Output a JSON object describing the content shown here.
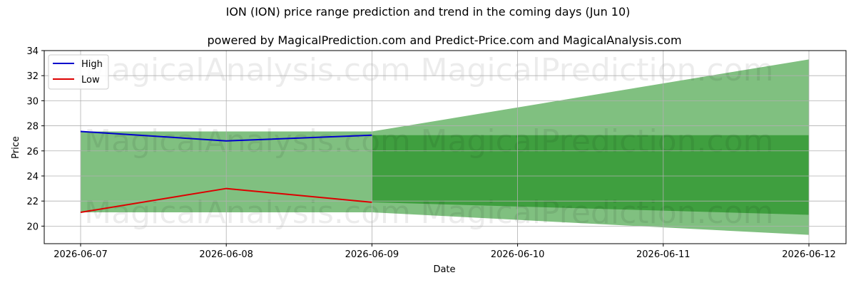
{
  "chart_data": {
    "type": "area",
    "title": "ION (ION) price range prediction and trend in the coming days (Jun 10)",
    "subtitle": "powered by MagicalPrediction.com and Predict-Price.com and MagicalAnalysis.com",
    "xlabel": "Date",
    "ylabel": "Price",
    "x": [
      "2026-06-07",
      "2026-06-08",
      "2026-06-09",
      "2026-06-10",
      "2026-06-11",
      "2026-06-12"
    ],
    "ylim": [
      18.6,
      34.0
    ],
    "yticks": [
      20,
      22,
      24,
      26,
      28,
      30,
      32,
      34
    ],
    "grid": true,
    "legend_position": "top-left",
    "series": [
      {
        "name": "High",
        "color": "#0000cc",
        "x": [
          0,
          1,
          2
        ],
        "values": [
          27.55,
          26.8,
          27.25
        ]
      },
      {
        "name": "Low",
        "color": "#dd0000",
        "x": [
          0,
          1,
          2
        ],
        "values": [
          21.1,
          23.0,
          21.9
        ]
      }
    ],
    "bands": [
      {
        "color": "#80c080",
        "x": [
          0,
          2
        ],
        "upper": [
          27.55,
          27.55
        ],
        "lower": [
          21.1,
          21.1
        ]
      },
      {
        "color": "#80c080",
        "x": [
          2,
          5
        ],
        "upper": [
          27.55,
          33.3
        ],
        "lower": [
          21.1,
          19.3
        ]
      },
      {
        "color": "#3f9f3f",
        "x": [
          2,
          5
        ],
        "upper": [
          27.25,
          27.25
        ],
        "lower": [
          21.9,
          20.9
        ]
      }
    ],
    "watermarks": [
      "MagicalAnalysis.com",
      "MagicalPrediction.com"
    ]
  }
}
